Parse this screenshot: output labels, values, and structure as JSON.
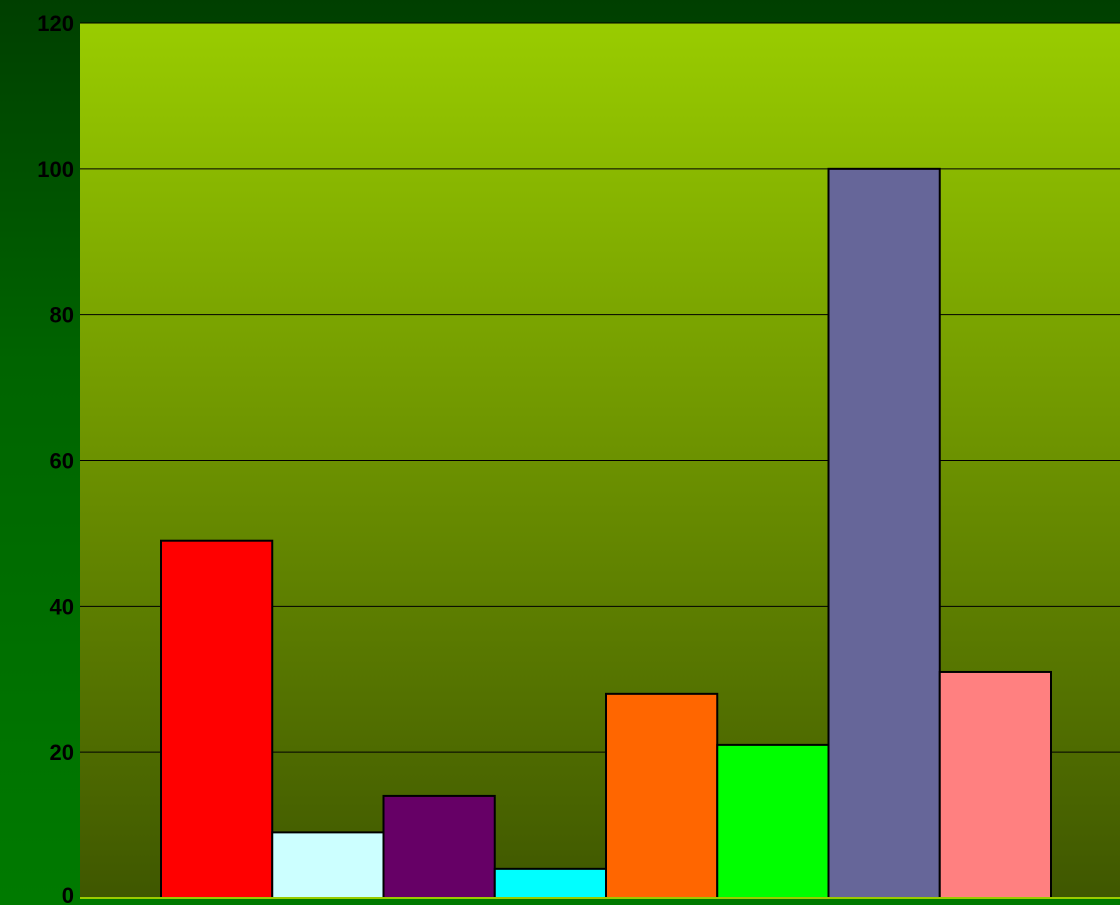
{
  "chart_data": {
    "type": "bar",
    "title": "",
    "xlabel": "",
    "ylabel": "",
    "ylim": [
      0,
      120
    ],
    "yticks": [
      0,
      20,
      40,
      60,
      80,
      100,
      120
    ],
    "grid": true,
    "legend": "none",
    "values": [
      49,
      9,
      14,
      4,
      28,
      21,
      100,
      31
    ],
    "colors": [
      "#ff0000",
      "#ccffff",
      "#660066",
      "#00ffff",
      "#ff6600",
      "#00ff00",
      "#666699",
      "#ff8080"
    ],
    "plot_background_top": "#99cc00",
    "plot_background_bottom": "#3f5700",
    "page_background": "#006600"
  }
}
